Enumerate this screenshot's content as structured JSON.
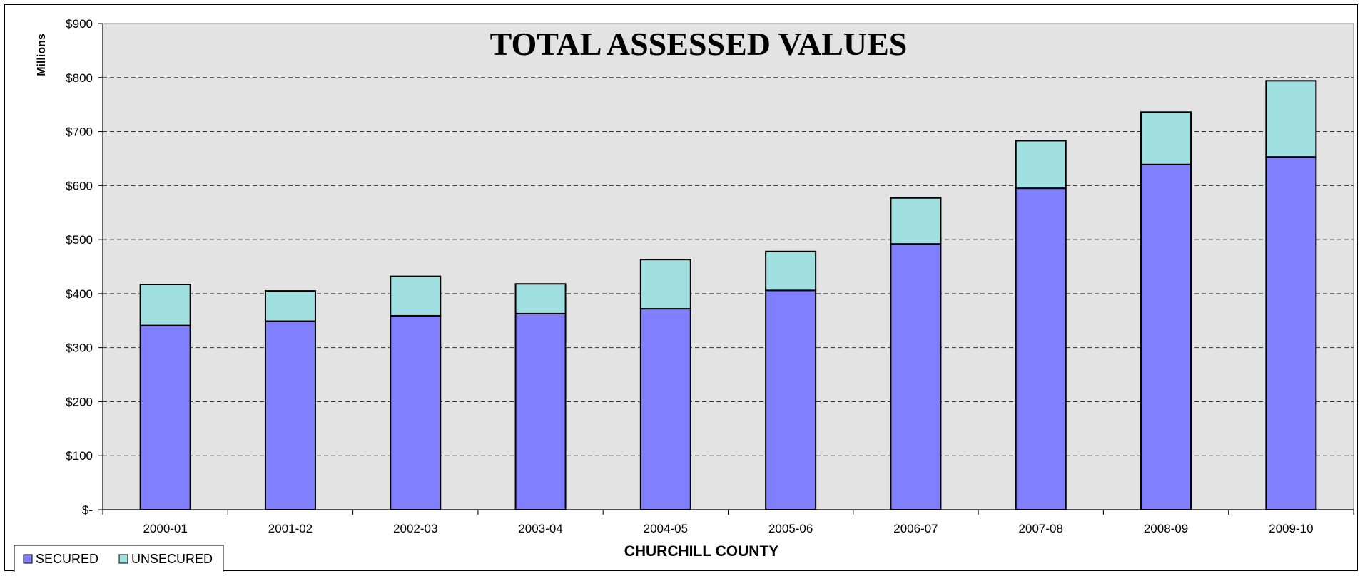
{
  "chart_data": {
    "type": "bar",
    "stacked": true,
    "title": "TOTAL ASSESSED VALUES",
    "xlabel": "CHURCHILL COUNTY",
    "ylabel": "Millions",
    "categories": [
      "2000-01",
      "2001-02",
      "2002-03",
      "2003-04",
      "2004-05",
      "2005-06",
      "2006-07",
      "2007-08",
      "2008-09",
      "2009-10"
    ],
    "series": [
      {
        "name": "SECURED",
        "color": "#8080ff",
        "values": [
          341,
          349,
          359,
          363,
          372,
          406,
          492,
          595,
          639,
          653
        ]
      },
      {
        "name": "UNSECURED",
        "color": "#a0e0e0",
        "values": [
          76,
          56,
          73,
          55,
          91,
          72,
          85,
          88,
          97,
          141
        ]
      }
    ],
    "ylim": [
      0,
      900
    ],
    "yticks": [
      0,
      100,
      200,
      300,
      400,
      500,
      600,
      700,
      800,
      900
    ],
    "ytick_labels": [
      "$-",
      "$100",
      "$200",
      "$300",
      "$400",
      "$500",
      "$600",
      "$700",
      "$800",
      "$900"
    ],
    "grid": true,
    "legend": "bottom-left",
    "plot_background": "#e3e3e3"
  }
}
